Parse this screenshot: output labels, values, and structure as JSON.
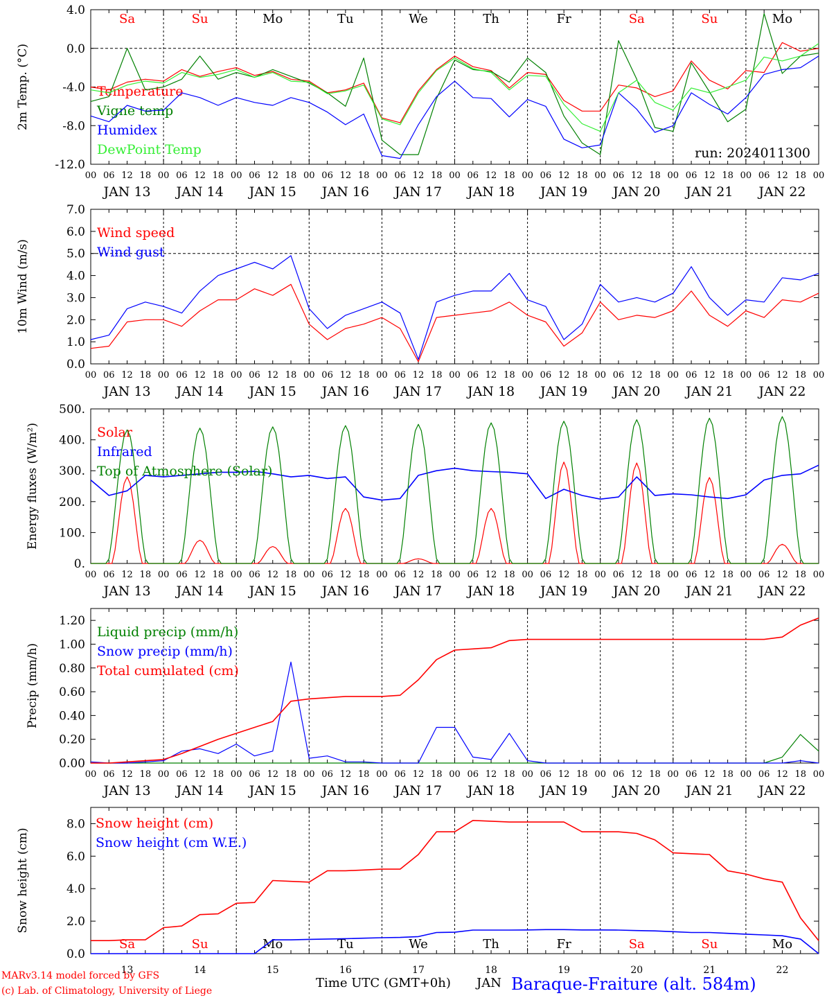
{
  "footer": {
    "credit1": "MARv3.14 model forced by GFS",
    "credit2": "(c) Lab. of Climatology, University of Liege",
    "xlabel": "Time UTC (GMT+0h)",
    "month": "JAN",
    "station": "Baraque-Fraiture (alt. 584m)"
  },
  "colors": {
    "red": "#ff0000",
    "green": "#008000",
    "blue": "#0000ff",
    "lime": "#33ee33",
    "black": "#000000"
  },
  "days": {
    "weekday_labels": [
      "Sa",
      "Su",
      "Mo",
      "Tu",
      "We",
      "Th",
      "Fr",
      "Sa",
      "Su",
      "Mo"
    ],
    "weekday_colors": [
      "red",
      "red",
      "black",
      "black",
      "black",
      "black",
      "black",
      "red",
      "red",
      "black"
    ],
    "date_labels": [
      "JAN 13",
      "JAN 14",
      "JAN 15",
      "JAN 16",
      "JAN 17",
      "JAN 18",
      "JAN 19",
      "JAN 20",
      "JAN 21",
      "JAN 22"
    ],
    "day_numbers": [
      "13",
      "14",
      "15",
      "16",
      "17",
      "18",
      "19",
      "20",
      "21",
      "22"
    ],
    "hour_ticks": [
      "00",
      "06",
      "12",
      "18"
    ],
    "final_hour": "00"
  },
  "chart_data": [
    {
      "type": "line",
      "ylabel": "2m Temp. (°C)",
      "ylim": [
        -12,
        4
      ],
      "yticks": [
        "4.0",
        "0.0",
        "-4.0",
        "-8.0",
        "-12.0"
      ],
      "ref_line": 0,
      "annotation": "run: 2024011300",
      "x_hours": [
        0,
        6,
        12,
        18,
        24,
        30,
        36,
        42,
        48,
        54,
        60,
        66,
        72,
        78,
        84,
        90,
        96,
        102,
        108,
        114,
        120,
        126,
        132,
        138,
        144,
        150,
        156,
        162,
        168,
        174,
        180,
        186,
        192,
        198,
        204,
        210,
        216,
        222,
        228,
        234,
        240
      ],
      "series": [
        {
          "name": "Temperature",
          "color": "red",
          "values": [
            -4.0,
            -4.3,
            -3.5,
            -3.2,
            -3.4,
            -2.2,
            -2.9,
            -2.4,
            -2.0,
            -2.8,
            -2.4,
            -3.2,
            -3.4,
            -4.6,
            -4.3,
            -3.6,
            -7.2,
            -7.7,
            -4.4,
            -2.2,
            -0.8,
            -1.9,
            -2.3,
            -4.1,
            -2.5,
            -2.7,
            -5.4,
            -6.5,
            -6.5,
            -3.8,
            -4.1,
            -5.0,
            -4.4,
            -1.3,
            -3.3,
            -4.2,
            -2.3,
            -2.5,
            0.6,
            -0.3,
            0.0
          ]
        },
        {
          "name": "Vigne temp",
          "color": "green",
          "values": [
            -5.5,
            -5.0,
            0.0,
            -4.3,
            -4.0,
            -3.2,
            -0.8,
            -3.2,
            -2.5,
            -3.0,
            -2.2,
            -2.9,
            -3.6,
            -4.6,
            -6.0,
            -1.0,
            -9.5,
            -11.0,
            -11.0,
            -5.2,
            -1.2,
            -2.2,
            -2.4,
            -3.5,
            -1.0,
            -2.5,
            -7.0,
            -9.8,
            -11.0,
            0.8,
            -3.2,
            -8.2,
            -8.6,
            -1.5,
            -4.5,
            -7.6,
            -6.3,
            3.6,
            -2.6,
            -0.8,
            -0.5
          ]
        },
        {
          "name": "Humidex",
          "color": "blue",
          "values": [
            -7.0,
            -7.6,
            -5.9,
            -6.5,
            -6.4,
            -4.6,
            -5.1,
            -5.9,
            -5.1,
            -5.6,
            -5.9,
            -5.1,
            -5.6,
            -6.6,
            -7.9,
            -6.8,
            -11.1,
            -11.4,
            -7.9,
            -5.0,
            -3.4,
            -5.1,
            -5.2,
            -7.1,
            -5.3,
            -6.0,
            -9.4,
            -10.3,
            -10.0,
            -4.6,
            -6.3,
            -8.7,
            -8.0,
            -4.6,
            -5.8,
            -6.8,
            -5.1,
            -2.7,
            -2.2,
            -2.0,
            -0.8
          ]
        },
        {
          "name": "DewPoint Temp",
          "color": "lime",
          "values": [
            -4.3,
            -4.6,
            -3.8,
            -3.4,
            -3.6,
            -2.5,
            -3.0,
            -2.7,
            -2.2,
            -3.0,
            -2.5,
            -3.4,
            -3.5,
            -4.7,
            -4.4,
            -3.8,
            -7.3,
            -7.9,
            -4.6,
            -2.3,
            -1.0,
            -2.1,
            -2.5,
            -4.3,
            -2.8,
            -2.9,
            -5.8,
            -7.8,
            -8.6,
            -4.6,
            -3.3,
            -5.6,
            -6.4,
            -4.1,
            -4.6,
            -4.0,
            -3.3,
            -0.9,
            -1.3,
            -0.8,
            0.5
          ]
        }
      ]
    },
    {
      "type": "line",
      "ylabel": "10m Wind (m/s)",
      "ylim": [
        0,
        7
      ],
      "yticks": [
        "7.0",
        "6.0",
        "5.0",
        "4.0",
        "3.0",
        "2.0",
        "1.0",
        "0.0"
      ],
      "ref_line": 5,
      "x_hours": [
        0,
        6,
        12,
        18,
        24,
        30,
        36,
        42,
        48,
        54,
        60,
        66,
        72,
        78,
        84,
        90,
        96,
        102,
        108,
        114,
        120,
        126,
        132,
        138,
        144,
        150,
        156,
        162,
        168,
        174,
        180,
        186,
        192,
        198,
        204,
        210,
        216,
        222,
        228,
        234,
        240
      ],
      "series": [
        {
          "name": "Wind speed",
          "color": "red",
          "values": [
            0.7,
            0.8,
            1.9,
            2.0,
            2.0,
            1.7,
            2.4,
            2.9,
            2.9,
            3.4,
            3.1,
            3.6,
            1.8,
            1.1,
            1.6,
            1.8,
            2.1,
            1.6,
            0.1,
            2.1,
            2.2,
            2.3,
            2.4,
            2.8,
            2.2,
            1.9,
            0.8,
            1.4,
            2.8,
            2.0,
            2.2,
            2.1,
            2.4,
            3.3,
            2.2,
            1.7,
            2.4,
            2.1,
            2.9,
            2.8,
            3.2
          ]
        },
        {
          "name": "Wind gust",
          "color": "blue",
          "values": [
            1.1,
            1.3,
            2.5,
            2.8,
            2.6,
            2.3,
            3.3,
            4.0,
            4.3,
            4.6,
            4.3,
            4.9,
            2.5,
            1.6,
            2.2,
            2.5,
            2.8,
            2.3,
            0.2,
            2.8,
            3.1,
            3.3,
            3.3,
            4.1,
            2.9,
            2.6,
            1.1,
            1.8,
            3.6,
            2.8,
            3.0,
            2.8,
            3.2,
            4.4,
            3.0,
            2.2,
            2.9,
            2.8,
            3.9,
            3.8,
            4.1
          ]
        }
      ]
    },
    {
      "type": "line",
      "ylabel": "Energy fluxes (W/m²)",
      "ylim": [
        0,
        500
      ],
      "yticks": [
        "500.",
        "400.",
        "300.",
        "200.",
        "100.",
        "0."
      ],
      "series": [
        {
          "name": "Solar",
          "color": "red",
          "peak_values": [
            280,
            75,
            55,
            178,
            15,
            178,
            328,
            325,
            278,
            62
          ]
        },
        {
          "name": "Infrared",
          "color": "blue",
          "x_hours": [
            0,
            6,
            12,
            18,
            24,
            30,
            36,
            42,
            48,
            54,
            60,
            66,
            72,
            78,
            84,
            90,
            96,
            102,
            108,
            114,
            120,
            126,
            132,
            138,
            144,
            150,
            156,
            162,
            168,
            174,
            180,
            186,
            192,
            198,
            204,
            210,
            216,
            222,
            228,
            234,
            240
          ],
          "values": [
            270,
            220,
            235,
            285,
            280,
            285,
            290,
            295,
            295,
            298,
            290,
            280,
            285,
            275,
            280,
            215,
            205,
            210,
            285,
            300,
            308,
            300,
            297,
            295,
            290,
            210,
            240,
            220,
            208,
            215,
            280,
            220,
            225,
            222,
            215,
            210,
            222,
            270,
            285,
            290,
            318
          ]
        },
        {
          "name": "Top of Atmosphere (Solar)",
          "color": "green",
          "peak_values": [
            432,
            438,
            442,
            446,
            450,
            455,
            460,
            465,
            470,
            475
          ]
        }
      ]
    },
    {
      "type": "line",
      "ylabel": "Precip (mm/h)",
      "ylim": [
        0,
        1.3
      ],
      "yticks": [
        "1.20",
        "1.00",
        "0.80",
        "0.60",
        "0.40",
        "0.20",
        "0.00"
      ],
      "x_hours": [
        0,
        6,
        12,
        18,
        24,
        30,
        36,
        42,
        48,
        54,
        60,
        66,
        72,
        78,
        84,
        90,
        96,
        102,
        108,
        114,
        120,
        126,
        132,
        138,
        144,
        150,
        156,
        162,
        168,
        174,
        180,
        186,
        192,
        198,
        204,
        210,
        216,
        222,
        228,
        234,
        240
      ],
      "series": [
        {
          "name": "Liquid precip (mm/h)",
          "color": "green",
          "values": [
            0.0,
            0.0,
            0.0,
            0.0,
            0.0,
            0.0,
            0.0,
            0.0,
            0.0,
            0.0,
            0.0,
            0.0,
            0.0,
            0.0,
            0.0,
            0.0,
            0.0,
            0.0,
            0.0,
            0.0,
            0.0,
            0.0,
            0.0,
            0.0,
            0.0,
            0.0,
            0.0,
            0.0,
            0.0,
            0.0,
            0.0,
            0.0,
            0.0,
            0.0,
            0.0,
            0.0,
            0.0,
            0.0,
            0.05,
            0.24,
            0.1
          ]
        },
        {
          "name": "Snow precip (mm/h)",
          "color": "blue",
          "values": [
            0.01,
            0.0,
            0.0,
            0.01,
            0.02,
            0.1,
            0.12,
            0.08,
            0.16,
            0.06,
            0.1,
            0.85,
            0.04,
            0.06,
            0.01,
            0.01,
            0.0,
            0.0,
            0.0,
            0.3,
            0.3,
            0.05,
            0.03,
            0.25,
            0.02,
            0.0,
            0.0,
            0.0,
            0.0,
            0.0,
            0.0,
            0.0,
            0.0,
            0.0,
            0.0,
            0.0,
            0.0,
            0.0,
            0.0,
            0.02,
            0.0
          ]
        },
        {
          "name": "Total cumulated (cm)",
          "color": "red",
          "values": [
            0.0,
            0.0,
            0.01,
            0.02,
            0.03,
            0.08,
            0.14,
            0.2,
            0.25,
            0.3,
            0.35,
            0.52,
            0.54,
            0.55,
            0.56,
            0.56,
            0.56,
            0.57,
            0.7,
            0.87,
            0.95,
            0.96,
            0.97,
            1.03,
            1.04,
            1.04,
            1.04,
            1.04,
            1.04,
            1.04,
            1.04,
            1.04,
            1.04,
            1.04,
            1.04,
            1.04,
            1.04,
            1.04,
            1.06,
            1.16,
            1.22
          ]
        }
      ]
    },
    {
      "type": "line",
      "ylabel": "Snow height (cm)",
      "ylim": [
        0,
        9
      ],
      "yticks": [
        "8.0",
        "6.0",
        "4.0",
        "2.0",
        "0.0"
      ],
      "x_hours": [
        0,
        6,
        12,
        18,
        24,
        30,
        36,
        42,
        48,
        54,
        60,
        66,
        72,
        78,
        84,
        90,
        96,
        102,
        108,
        114,
        120,
        126,
        132,
        138,
        144,
        150,
        156,
        162,
        168,
        174,
        180,
        186,
        192,
        198,
        204,
        210,
        216,
        222,
        228,
        234,
        240
      ],
      "series": [
        {
          "name": "Snow height (cm)",
          "color": "red",
          "values": [
            0.8,
            0.8,
            0.85,
            0.85,
            1.6,
            1.7,
            2.4,
            2.45,
            3.1,
            3.15,
            4.5,
            4.45,
            4.4,
            5.1,
            5.1,
            5.15,
            5.2,
            5.2,
            6.1,
            7.5,
            7.5,
            8.2,
            8.15,
            8.1,
            8.1,
            8.1,
            8.1,
            7.5,
            7.5,
            7.5,
            7.4,
            7.0,
            6.2,
            6.15,
            6.1,
            5.1,
            4.9,
            4.6,
            4.4,
            2.2,
            0.8
          ]
        },
        {
          "name": "Snow height (cm W.E.)",
          "color": "blue",
          "values": [
            0.0,
            0.0,
            0.0,
            0.0,
            0.0,
            0.0,
            0.0,
            0.0,
            0.0,
            0.0,
            0.85,
            0.85,
            0.88,
            0.9,
            0.92,
            0.95,
            0.98,
            1.0,
            1.05,
            1.3,
            1.32,
            1.45,
            1.45,
            1.45,
            1.46,
            1.48,
            1.48,
            1.46,
            1.46,
            1.45,
            1.42,
            1.4,
            1.35,
            1.3,
            1.3,
            1.25,
            1.2,
            1.15,
            1.1,
            0.9,
            0.0
          ]
        }
      ]
    }
  ]
}
